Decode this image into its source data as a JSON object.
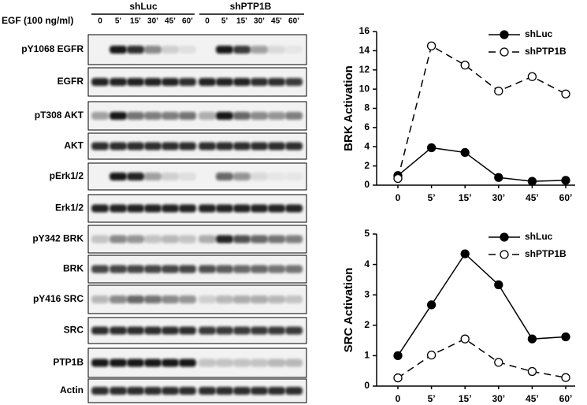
{
  "blot": {
    "treatment_label": "EGF (100 ng/ml)",
    "groups": [
      "shLuc",
      "shPTP1B"
    ],
    "timepoints": [
      "0",
      "5’",
      "15’",
      "30’",
      "45’",
      "60’",
      "0",
      "5’",
      "15’",
      "30’",
      "45’",
      "60’"
    ],
    "rows": [
      "pY1068 EGFR",
      "EGFR",
      "pT308 AKT",
      "AKT",
      "pErk1/2",
      "Erk1/2",
      "pY342 BRK",
      "BRK",
      "pY416 SRC",
      "SRC",
      "PTP1B",
      "Actin"
    ]
  },
  "chart_data": [
    {
      "type": "line",
      "ylabel": "BRK Activation",
      "categories": [
        "0",
        "5’",
        "15’",
        "30’",
        "45’",
        "60’"
      ],
      "series": [
        {
          "name": "shLuc",
          "color": "#000000",
          "marker_fill": "#000000",
          "line_style": "solid",
          "values": [
            1.0,
            3.9,
            3.4,
            0.8,
            0.4,
            0.5
          ]
        },
        {
          "name": "shPTP1B",
          "color": "#000000",
          "marker_fill": "#ffffff",
          "line_style": "dashed",
          "values": [
            0.7,
            14.5,
            12.5,
            9.8,
            11.3,
            9.5
          ]
        }
      ],
      "ylim": [
        0,
        16
      ],
      "yticks": [
        0,
        2,
        4,
        6,
        8,
        10,
        12,
        14,
        16
      ],
      "legend": "upper right"
    },
    {
      "type": "line",
      "ylabel": "SRC Activation",
      "categories": [
        "0",
        "5’",
        "15’",
        "30’",
        "45’",
        "60’"
      ],
      "series": [
        {
          "name": "shLuc",
          "color": "#000000",
          "marker_fill": "#000000",
          "line_style": "solid",
          "values": [
            1.0,
            2.67,
            4.35,
            3.33,
            1.55,
            1.62
          ]
        },
        {
          "name": "shPTP1B",
          "color": "#000000",
          "marker_fill": "#ffffff",
          "line_style": "dashed",
          "values": [
            0.27,
            1.02,
            1.55,
            0.78,
            0.48,
            0.28
          ]
        }
      ],
      "ylim": [
        0,
        5
      ],
      "yticks": [
        0,
        1,
        2,
        3,
        4,
        5
      ],
      "legend": "upper right"
    }
  ]
}
